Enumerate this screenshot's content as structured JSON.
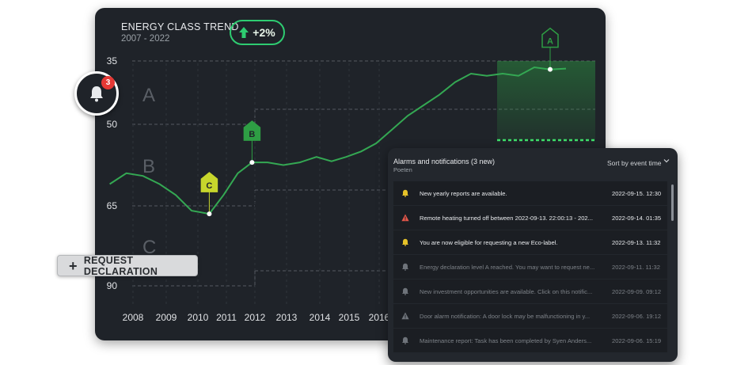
{
  "chart": {
    "title": "ENERGY CLASS TREND",
    "subtitle": "2007 - 2022",
    "trend_label": "+2%",
    "trend_icon": "arrow-up-icon",
    "accent_color": "#2ecc71",
    "line_color": "#34a853",
    "y_ticks": [
      "35",
      "50",
      "65",
      "90"
    ],
    "x_ticks": [
      "2008",
      "2009",
      "2010",
      "2011",
      "2012",
      "2013",
      "2014",
      "2015",
      "2016"
    ],
    "bands": [
      "A",
      "B",
      "C"
    ],
    "markers": [
      {
        "label": "C",
        "color": "#c7d62c"
      },
      {
        "label": "B",
        "color": "#2e9e44"
      },
      {
        "label": "A",
        "color": "#2e9e44"
      }
    ]
  },
  "chart_data": {
    "type": "line",
    "title": "ENERGY CLASS TREND",
    "subtitle": "2007 - 2022",
    "x": [
      2007.3,
      2007.8,
      2008.3,
      2008.8,
      2009.3,
      2009.8,
      2010.4,
      2010.9,
      2011.4,
      2011.9,
      2012.4,
      2012.9,
      2013.4,
      2013.9,
      2014.4,
      2014.9,
      2015.4,
      2015.9,
      2016.4,
      2016.9,
      2017.4,
      2017.9,
      2018.4,
      2018.9,
      2019.4,
      2019.9,
      2020.4,
      2020.9,
      2021.4,
      2021.9
    ],
    "y": [
      61,
      59,
      59.5,
      61,
      63,
      66.5,
      67.5,
      63,
      59,
      57,
      57,
      57.5,
      57,
      56,
      56.8,
      56,
      55,
      53.5,
      51,
      48,
      45.5,
      43,
      40,
      38,
      38.5,
      38,
      38.5,
      36.5,
      37,
      36.8
    ],
    "ylim": [
      35,
      90
    ],
    "y_ticks": [
      35,
      50,
      65,
      90
    ],
    "x_ticks": [
      2008,
      2009,
      2010,
      2011,
      2012,
      2013,
      2014,
      2015,
      2016
    ],
    "band_labels": [
      "A",
      "B",
      "C"
    ],
    "class_markers": [
      {
        "x": 2010.4,
        "y": 67.5,
        "class": "C"
      },
      {
        "x": 2011.9,
        "y": 57,
        "class": "B"
      },
      {
        "x": 2021.4,
        "y": 37,
        "class": "A"
      }
    ],
    "grid": "dashed class boundaries"
  },
  "notifications_widget": {
    "bell_icon": "bell-icon",
    "badge_count": "3"
  },
  "request_button": {
    "label": "REQUEST DECLARATION"
  },
  "panel": {
    "title": "Alarms and notifications (3 new)",
    "subtitle": "Poeten",
    "sort_label": "Sort by event time",
    "rows": [
      {
        "icon": "bell-icon",
        "message": "New yearly reports are available.",
        "time": "2022-09-15. 12:30",
        "state": "new"
      },
      {
        "icon": "warning-icon",
        "message": "Remote heating turned off between 2022-09-13. 22:00:13 - 202...",
        "time": "2022-09-14. 01:35",
        "state": "new"
      },
      {
        "icon": "bell-icon",
        "message": "You are now eligible for requesting a new Eco-label.",
        "time": "2022-09-13. 11:32",
        "state": "new"
      },
      {
        "icon": "bell-icon",
        "message": "Energy declaration level A reached. You may want to request ne...",
        "time": "2022-09-11. 11:32",
        "state": "old"
      },
      {
        "icon": "bell-icon",
        "message": "New investment opportunities are available. Click on this notific...",
        "time": "2022-09-09. 09:12",
        "state": "old"
      },
      {
        "icon": "warning-icon",
        "message": "Door alarm notification: A door lock may be malfunctioning in y...",
        "time": "2022-09-06. 19:12",
        "state": "old"
      },
      {
        "icon": "bell-icon",
        "message": "Maintenance report: Task has been completed by Syen Anders...",
        "time": "2022-09-06. 15:19",
        "state": "old"
      }
    ]
  }
}
